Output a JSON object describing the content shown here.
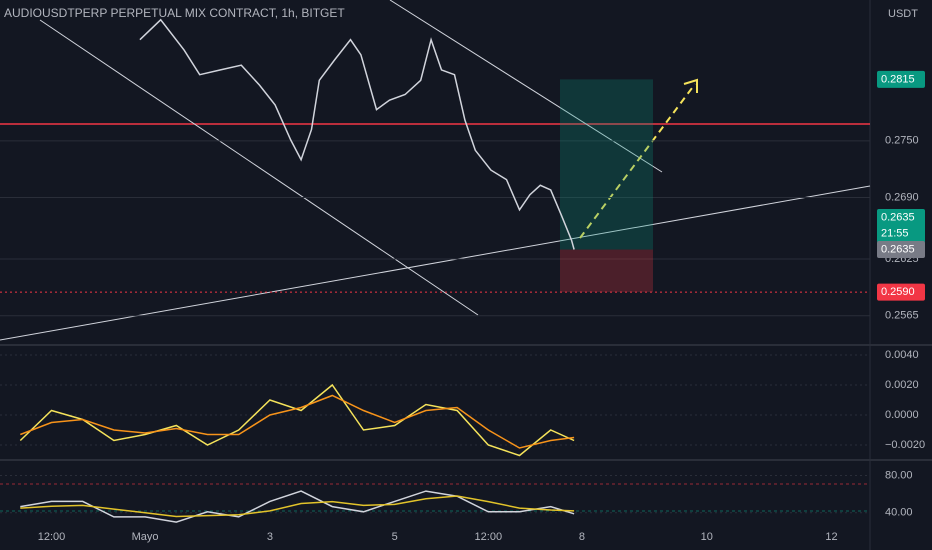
{
  "chart_data": [
    {
      "type": "line",
      "title": "AUDIOUSDTPERP PERPETUAL MIX CONTRACT, 1h, BITGET",
      "currency": "USDT",
      "x": [
        46,
        54,
        63,
        69,
        77,
        85,
        92,
        98,
        104,
        108,
        112,
        115,
        121,
        127,
        131,
        137,
        142,
        148,
        154,
        158,
        162,
        167,
        171,
        175,
        181,
        187,
        192,
        196,
        200,
        204,
        208,
        212,
        213
      ],
      "xlim": [
        -7.8,
        326.8
      ],
      "series": [
        {
          "color": "#d1d4dc",
          "values": [
            0.2857,
            0.2878,
            0.2846,
            0.282,
            0.2825,
            0.283,
            0.2809,
            0.2788,
            0.2751,
            0.273,
            0.2762,
            0.2814,
            0.2836,
            0.2857,
            0.2841,
            0.2783,
            0.2793,
            0.2799,
            0.2814,
            0.2857,
            0.2825,
            0.282,
            0.2772,
            0.274,
            0.2719,
            0.2709,
            0.2677,
            0.2693,
            0.2703,
            0.2698,
            0.2672,
            0.2645,
            0.2635
          ]
        }
      ],
      "ylim": [
        0.2534,
        0.2899
      ],
      "yticks": [
        0.2565,
        0.2625,
        {
          "value": 0.269,
          "label": "0.2690"
        },
        {
          "value": 0.275,
          "label": "0.2750"
        }
      ],
      "price_lines": [
        {
          "value": 0.2815,
          "label": "0.2815",
          "color": "#089981"
        },
        {
          "value": 0.2635,
          "label": "0.2635",
          "color": "#089981"
        },
        {
          "value": 0.2635,
          "label": "0.2635",
          "color": "#787b86"
        },
        {
          "value": 0.259,
          "label": "0.2590",
          "color": "#f23645"
        }
      ],
      "countdown": "21:55"
    },
    {
      "type": "line",
      "x": [
        0,
        12,
        24,
        36,
        48,
        60,
        72,
        84,
        96,
        108,
        120,
        132,
        144,
        156,
        168,
        180,
        192,
        204,
        213
      ],
      "xlim": [
        -7.8,
        326.8
      ],
      "series": [
        {
          "color": "#f5e35b",
          "values": [
            -0.0017,
            0.0003,
            -0.0003,
            -0.0017,
            -0.0013,
            -0.0007,
            -0.002,
            -0.001,
            0.001,
            0.0003,
            0.002,
            -0.001,
            -0.0007,
            0.0007,
            0.0003,
            -0.002,
            -0.0027,
            -0.001,
            -0.0017
          ]
        },
        {
          "color": "#f7931a",
          "values": [
            -0.0013,
            -0.0005,
            -0.0003,
            -0.001,
            -0.0012,
            -0.0009,
            -0.0013,
            -0.0013,
            0,
            0.0005,
            0.0013,
            0.0003,
            -0.0005,
            0.0003,
            0.0005,
            -0.001,
            -0.0022,
            -0.0017,
            -0.0015
          ]
        }
      ],
      "ylim": [
        -0.003,
        0.00467
      ],
      "yticks": [
        {
          "value": 0.004,
          "label": "0.0040"
        },
        {
          "value": 0.002,
          "label": "0.0020"
        },
        {
          "value": 0,
          "label": "0.0000"
        },
        {
          "value": -0.002,
          "label": "−0.0020"
        }
      ]
    },
    {
      "type": "line",
      "x": [
        0,
        12,
        24,
        36,
        48,
        60,
        72,
        84,
        96,
        108,
        120,
        132,
        144,
        156,
        168,
        180,
        192,
        204,
        213
      ],
      "xlim": [
        -7.8,
        326.8
      ],
      "xticks": [
        {
          "value": 12,
          "label": "12:00"
        },
        {
          "value": 48,
          "label": "Mayo"
        },
        {
          "value": 96,
          "label": "3"
        },
        {
          "value": 144,
          "label": "5"
        },
        {
          "value": 180,
          "label": "12:00"
        },
        {
          "value": 216,
          "label": "8"
        },
        {
          "value": 264,
          "label": "10"
        },
        {
          "value": 312,
          "label": "12"
        }
      ],
      "series": [
        {
          "color": "#d1d4dc",
          "values": [
            46.7,
            52.2,
            52.2,
            35.6,
            35.6,
            30,
            41.1,
            35.6,
            52.2,
            63.3,
            46.7,
            41.1,
            52.2,
            63.3,
            57.8,
            41.1,
            41.1,
            46.7,
            38.9
          ]
        },
        {
          "color": "#e2c32a",
          "values": [
            45,
            47,
            48,
            44,
            40,
            36,
            37,
            38,
            42,
            50,
            52,
            48,
            49,
            55,
            58,
            52,
            45,
            43,
            42
          ]
        }
      ],
      "ylim": [
        2.2,
        96.7
      ],
      "yticks": [
        {
          "value": 80,
          "label": "80.00"
        },
        {
          "value": 40,
          "label": "40.00"
        }
      ]
    }
  ]
}
